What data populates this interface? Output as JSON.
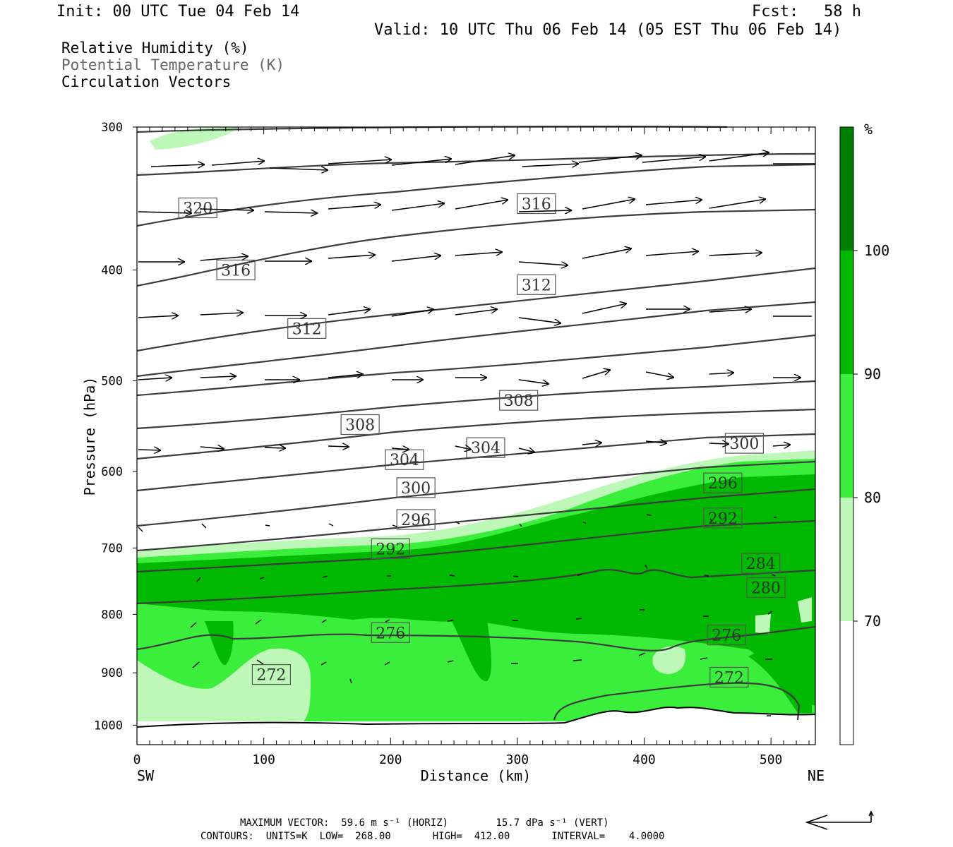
{
  "header": {
    "init": "Init: 00 UTC Tue 04 Feb 14",
    "fcst_label": "Fcst:",
    "fcst_value": "58 h",
    "valid": "Valid: 10 UTC Thu 06 Feb 14 (05 EST Thu 06 Feb 14)"
  },
  "fields": {
    "rh": "Relative Humidity (%)",
    "theta": "Potential Temperature (K)",
    "vectors": "Circulation Vectors"
  },
  "footer": {
    "max_vector": "MAXIMUM VECTOR:  59.6 m s⁻¹ (HORIZ)        15.7 dPa s⁻¹ (VERT)",
    "contours": "CONTOURS:  UNITS=K  LOW=  268.00       HIGH=  412.00       INTERVAL=    4.0000"
  },
  "colors": {
    "rh_70_80": "#bdf8b8",
    "rh_80_90": "#3cee3c",
    "rh_90_100": "#00b900",
    "rh_100": "#007f00",
    "contour": "#3c3c3c"
  },
  "chart_data": {
    "type": "cross-section",
    "xlabel": "Distance (km)",
    "ylabel": "Pressure (hPa)",
    "xlim": [
      0,
      535
    ],
    "ylim": [
      1040,
      300
    ],
    "y_scale": "log-pressure",
    "x_ticks": [
      0,
      100,
      200,
      300,
      400,
      500
    ],
    "y_ticks": [
      300,
      400,
      500,
      600,
      700,
      800,
      900,
      1000
    ],
    "x_end_labels": [
      "SW",
      "NE"
    ],
    "colorbar": {
      "unit": "%",
      "levels": [
        70,
        80,
        90,
        100
      ],
      "labels": [
        "70",
        "80",
        "90",
        "100"
      ]
    },
    "theta_labels": [
      {
        "value": "320",
        "x": 48,
        "p": 353
      },
      {
        "value": "316",
        "x": 315,
        "p": 350
      },
      {
        "value": "316",
        "x": 78,
        "p": 400
      },
      {
        "value": "312",
        "x": 315,
        "p": 412
      },
      {
        "value": "312",
        "x": 134,
        "p": 450
      },
      {
        "value": "308",
        "x": 301,
        "p": 520
      },
      {
        "value": "308",
        "x": 176,
        "p": 546
      },
      {
        "value": "304",
        "x": 275,
        "p": 572
      },
      {
        "value": "304",
        "x": 211,
        "p": 586
      },
      {
        "value": "300",
        "x": 479,
        "p": 567
      },
      {
        "value": "300",
        "x": 220,
        "p": 620
      },
      {
        "value": "296",
        "x": 462,
        "p": 614
      },
      {
        "value": "296",
        "x": 220,
        "p": 661
      },
      {
        "value": "292",
        "x": 462,
        "p": 659
      },
      {
        "value": "292",
        "x": 200,
        "p": 701
      },
      {
        "value": "284",
        "x": 492,
        "p": 722
      },
      {
        "value": "280",
        "x": 496,
        "p": 758
      },
      {
        "value": "276",
        "x": 200,
        "p": 830
      },
      {
        "value": "276",
        "x": 465,
        "p": 834
      },
      {
        "value": "272",
        "x": 106,
        "p": 903
      },
      {
        "value": "272",
        "x": 467,
        "p": 908
      }
    ]
  }
}
